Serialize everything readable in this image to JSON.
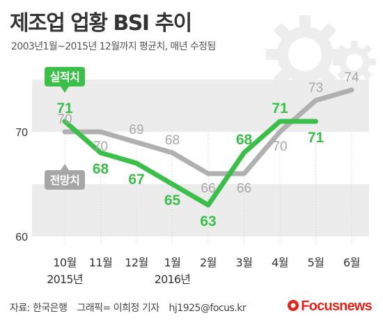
{
  "header": {
    "title": "제조업 업황 BSI 추이",
    "subtitle": "2003년1월~2015년 12월까지 평균치, 매년 수정됨"
  },
  "footer": {
    "source": "자료: 한국은행",
    "credit": "그래픽= 이희정 기자",
    "email": "hj1925@focus.kr"
  },
  "brand": {
    "name_focus": "Focus",
    "name_news": "news"
  },
  "colors": {
    "actual": "#3cbf4a",
    "forecast": "#b0b0b0",
    "band": "#ececec",
    "axis_text": "#333333"
  },
  "chart_data": {
    "type": "line",
    "categories": [
      "10월",
      "11월",
      "12월",
      "1월",
      "2월",
      "3월",
      "4월",
      "5월",
      "6월"
    ],
    "year_labels": {
      "10월": "2015년",
      "1월": "2016년"
    },
    "ylim": [
      60,
      74
    ],
    "yticks": [
      60,
      70
    ],
    "series": [
      {
        "name": "실적치",
        "values": [
          71,
          68,
          67,
          65,
          63,
          68,
          71,
          71,
          null
        ]
      },
      {
        "name": "전망치",
        "values": [
          70,
          70,
          69,
          68,
          66,
          66,
          70,
          73,
          74
        ]
      }
    ]
  }
}
